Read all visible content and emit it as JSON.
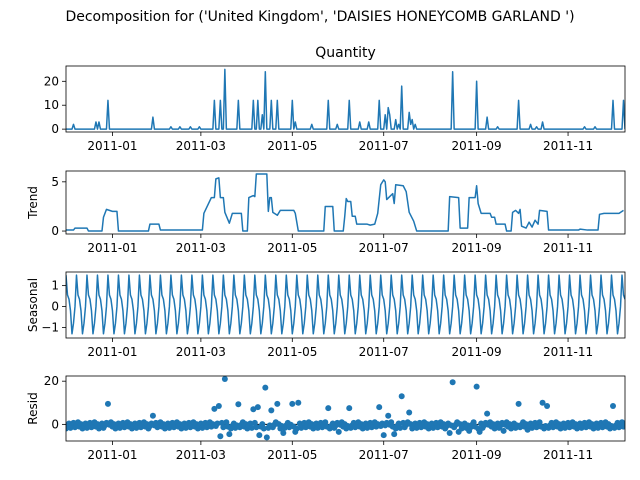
{
  "figure": {
    "suptitle": "Decomposition for ('United Kingdom', 'DAISIES  HONEYCOMB GARLAND ')"
  },
  "x_axis": {
    "start": "2010-12-01",
    "end": "2011-12-09",
    "tick_labels": [
      "2011-01",
      "2011-03",
      "2011-05",
      "2011-07",
      "2011-09",
      "2011-11"
    ],
    "tick_dates": [
      "2011-01-01",
      "2011-03-01",
      "2011-05-01",
      "2011-07-01",
      "2011-09-01",
      "2011-11-01"
    ]
  },
  "chart_data": [
    {
      "type": "line",
      "title": "Quantity",
      "ylabel": "",
      "ylim": [
        -1.2,
        26.4
      ],
      "yticks": [
        0,
        10,
        20
      ],
      "ytick_labels": [
        "0",
        "10",
        "20"
      ],
      "color": "#1f77b4",
      "note_values": "daily values with spikes",
      "points": [
        [
          "2010-12-01",
          0
        ],
        [
          "2010-12-05",
          0
        ],
        [
          "2010-12-06",
          2
        ],
        [
          "2010-12-07",
          0
        ],
        [
          "2010-12-20",
          0
        ],
        [
          "2010-12-21",
          3
        ],
        [
          "2010-12-22",
          0
        ],
        [
          "2010-12-23",
          3
        ],
        [
          "2010-12-24",
          0
        ],
        [
          "2010-12-28",
          0
        ],
        [
          "2010-12-29",
          12
        ],
        [
          "2010-12-30",
          0
        ],
        [
          "2011-01-27",
          0
        ],
        [
          "2011-01-28",
          5
        ],
        [
          "2011-01-29",
          0
        ],
        [
          "2011-02-08",
          0
        ],
        [
          "2011-02-09",
          1
        ],
        [
          "2011-02-10",
          0
        ],
        [
          "2011-02-14",
          0
        ],
        [
          "2011-02-15",
          1
        ],
        [
          "2011-02-16",
          0
        ],
        [
          "2011-02-21",
          0
        ],
        [
          "2011-02-22",
          1
        ],
        [
          "2011-02-23",
          0
        ],
        [
          "2011-02-27",
          0
        ],
        [
          "2011-02-28",
          1
        ],
        [
          "2011-03-01",
          0
        ],
        [
          "2011-03-09",
          0
        ],
        [
          "2011-03-10",
          12
        ],
        [
          "2011-03-11",
          0
        ],
        [
          "2011-03-13",
          0
        ],
        [
          "2011-03-14",
          12
        ],
        [
          "2011-03-15",
          0
        ],
        [
          "2011-03-16",
          0
        ],
        [
          "2011-03-17",
          25
        ],
        [
          "2011-03-18",
          0
        ],
        [
          "2011-03-25",
          0
        ],
        [
          "2011-03-26",
          12
        ],
        [
          "2011-03-27",
          0
        ],
        [
          "2011-04-04",
          0
        ],
        [
          "2011-04-05",
          12
        ],
        [
          "2011-04-06",
          0
        ],
        [
          "2011-04-07",
          0
        ],
        [
          "2011-04-08",
          12
        ],
        [
          "2011-04-09",
          0
        ],
        [
          "2011-04-10",
          0
        ],
        [
          "2011-04-11",
          6
        ],
        [
          "2011-04-12",
          0
        ],
        [
          "2011-04-13",
          24
        ],
        [
          "2011-04-14",
          0
        ],
        [
          "2011-04-16",
          0
        ],
        [
          "2011-04-17",
          12
        ],
        [
          "2011-04-18",
          0
        ],
        [
          "2011-04-20",
          0
        ],
        [
          "2011-04-21",
          12
        ],
        [
          "2011-04-22",
          0
        ],
        [
          "2011-04-30",
          0
        ],
        [
          "2011-05-01",
          12
        ],
        [
          "2011-05-02",
          0
        ],
        [
          "2011-05-03",
          3
        ],
        [
          "2011-05-04",
          0
        ],
        [
          "2011-05-13",
          0
        ],
        [
          "2011-05-14",
          2
        ],
        [
          "2011-05-15",
          0
        ],
        [
          "2011-05-24",
          0
        ],
        [
          "2011-05-25",
          12
        ],
        [
          "2011-05-26",
          0
        ],
        [
          "2011-05-30",
          0
        ],
        [
          "2011-05-31",
          2
        ],
        [
          "2011-06-01",
          0
        ],
        [
          "2011-06-07",
          0
        ],
        [
          "2011-06-08",
          12
        ],
        [
          "2011-06-09",
          0
        ],
        [
          "2011-06-14",
          0
        ],
        [
          "2011-06-15",
          3
        ],
        [
          "2011-06-16",
          0
        ],
        [
          "2011-06-20",
          0
        ],
        [
          "2011-06-21",
          3
        ],
        [
          "2011-06-22",
          0
        ],
        [
          "2011-06-27",
          0
        ],
        [
          "2011-06-28",
          12
        ],
        [
          "2011-06-29",
          0
        ],
        [
          "2011-07-01",
          0
        ],
        [
          "2011-07-02",
          6
        ],
        [
          "2011-07-03",
          0
        ],
        [
          "2011-07-04",
          9
        ],
        [
          "2011-07-05",
          6
        ],
        [
          "2011-07-06",
          0
        ],
        [
          "2011-07-08",
          0
        ],
        [
          "2011-07-09",
          4
        ],
        [
          "2011-07-10",
          0
        ],
        [
          "2011-07-11",
          2
        ],
        [
          "2011-07-12",
          0
        ],
        [
          "2011-07-13",
          18
        ],
        [
          "2011-07-14",
          0
        ],
        [
          "2011-07-17",
          0
        ],
        [
          "2011-07-18",
          7
        ],
        [
          "2011-07-19",
          2
        ],
        [
          "2011-07-20",
          4
        ],
        [
          "2011-07-21",
          0
        ],
        [
          "2011-07-22",
          2
        ],
        [
          "2011-07-23",
          0
        ],
        [
          "2011-08-15",
          0
        ],
        [
          "2011-08-16",
          24
        ],
        [
          "2011-08-17",
          0
        ],
        [
          "2011-08-31",
          0
        ],
        [
          "2011-09-01",
          20
        ],
        [
          "2011-09-02",
          0
        ],
        [
          "2011-09-07",
          0
        ],
        [
          "2011-09-08",
          5
        ],
        [
          "2011-09-09",
          0
        ],
        [
          "2011-09-14",
          0
        ],
        [
          "2011-09-15",
          1
        ],
        [
          "2011-09-16",
          0
        ],
        [
          "2011-09-28",
          0
        ],
        [
          "2011-09-29",
          12
        ],
        [
          "2011-09-30",
          0
        ],
        [
          "2011-10-06",
          0
        ],
        [
          "2011-10-07",
          2
        ],
        [
          "2011-10-08",
          0
        ],
        [
          "2011-10-10",
          0
        ],
        [
          "2011-10-11",
          1
        ],
        [
          "2011-10-12",
          0
        ],
        [
          "2011-10-14",
          0
        ],
        [
          "2011-10-15",
          3
        ],
        [
          "2011-10-16",
          0
        ],
        [
          "2011-11-11",
          0
        ],
        [
          "2011-11-12",
          1
        ],
        [
          "2011-11-13",
          0
        ],
        [
          "2011-11-18",
          0
        ],
        [
          "2011-11-19",
          1
        ],
        [
          "2011-11-20",
          0
        ],
        [
          "2011-11-30",
          0
        ],
        [
          "2011-12-01",
          12
        ],
        [
          "2011-12-02",
          0
        ],
        [
          "2011-12-07",
          0
        ],
        [
          "2011-12-08",
          12
        ],
        [
          "2011-12-09",
          0
        ]
      ]
    },
    {
      "type": "line",
      "title": "",
      "ylabel": "Trend",
      "ylim": [
        -0.3,
        6.1
      ],
      "yticks": [
        0,
        5
      ],
      "ytick_labels": [
        "0",
        "5"
      ],
      "color": "#1f77b4",
      "points": [
        [
          "2010-12-01",
          0.1
        ],
        [
          "2010-12-06",
          0.1
        ],
        [
          "2010-12-07",
          0.3
        ],
        [
          "2010-12-15",
          0.3
        ],
        [
          "2010-12-16",
          0.0
        ],
        [
          "2010-12-25",
          0.0
        ],
        [
          "2010-12-26",
          1.4
        ],
        [
          "2010-12-28",
          2.2
        ],
        [
          "2011-01-01",
          2.0
        ],
        [
          "2011-01-04",
          2.0
        ],
        [
          "2011-01-05",
          0.0
        ],
        [
          "2011-01-25",
          0.0
        ],
        [
          "2011-01-26",
          0.7
        ],
        [
          "2011-02-01",
          0.7
        ],
        [
          "2011-02-02",
          0.1
        ],
        [
          "2011-03-02",
          0.1
        ],
        [
          "2011-03-03",
          1.8
        ],
        [
          "2011-03-08",
          3.4
        ],
        [
          "2011-03-10",
          3.4
        ],
        [
          "2011-03-11",
          5.3
        ],
        [
          "2011-03-13",
          5.4
        ],
        [
          "2011-03-14",
          3.4
        ],
        [
          "2011-03-16",
          3.4
        ],
        [
          "2011-03-17",
          1.9
        ],
        [
          "2011-03-20",
          0.8
        ],
        [
          "2011-03-22",
          1.8
        ],
        [
          "2011-03-28",
          1.8
        ],
        [
          "2011-03-29",
          0.0
        ],
        [
          "2011-04-01",
          0.0
        ],
        [
          "2011-04-02",
          3.4
        ],
        [
          "2011-04-05",
          3.6
        ],
        [
          "2011-04-06",
          3.5
        ],
        [
          "2011-04-07",
          5.8
        ],
        [
          "2011-04-14",
          5.8
        ],
        [
          "2011-04-15",
          2.0
        ],
        [
          "2011-04-16",
          3.4
        ],
        [
          "2011-04-17",
          3.4
        ],
        [
          "2011-04-18",
          1.9
        ],
        [
          "2011-04-20",
          1.7
        ],
        [
          "2011-04-21",
          1.6
        ],
        [
          "2011-04-23",
          2.1
        ],
        [
          "2011-05-02",
          2.1
        ],
        [
          "2011-05-03",
          1.8
        ],
        [
          "2011-05-05",
          0.0
        ],
        [
          "2011-05-22",
          0.0
        ],
        [
          "2011-05-23",
          2.5
        ],
        [
          "2011-05-28",
          2.5
        ],
        [
          "2011-05-29",
          0.0
        ],
        [
          "2011-06-04",
          0.0
        ],
        [
          "2011-06-05",
          1.5
        ],
        [
          "2011-06-06",
          3.3
        ],
        [
          "2011-06-07",
          3.0
        ],
        [
          "2011-06-09",
          3.0
        ],
        [
          "2011-06-10",
          1.5
        ],
        [
          "2011-06-12",
          1.5
        ],
        [
          "2011-06-13",
          0.7
        ],
        [
          "2011-06-20",
          0.7
        ],
        [
          "2011-06-22",
          0.6
        ],
        [
          "2011-06-25",
          0.7
        ],
        [
          "2011-06-27",
          1.8
        ],
        [
          "2011-06-29",
          4.7
        ],
        [
          "2011-07-01",
          5.2
        ],
        [
          "2011-07-02",
          5.0
        ],
        [
          "2011-07-03",
          3.2
        ],
        [
          "2011-07-05",
          3.5
        ],
        [
          "2011-07-07",
          3.8
        ],
        [
          "2011-07-08",
          2.8
        ],
        [
          "2011-07-09",
          4.7
        ],
        [
          "2011-07-14",
          4.6
        ],
        [
          "2011-07-16",
          4.0
        ],
        [
          "2011-07-18",
          1.9
        ],
        [
          "2011-07-21",
          1.0
        ],
        [
          "2011-07-23",
          0.0
        ],
        [
          "2011-08-13",
          0.0
        ],
        [
          "2011-08-14",
          3.5
        ],
        [
          "2011-08-20",
          3.4
        ],
        [
          "2011-08-21",
          0.3
        ],
        [
          "2011-08-26",
          0.3
        ],
        [
          "2011-08-27",
          3.4
        ],
        [
          "2011-08-31",
          3.4
        ],
        [
          "2011-09-01",
          4.6
        ],
        [
          "2011-09-02",
          2.8
        ],
        [
          "2011-09-04",
          1.8
        ],
        [
          "2011-09-06",
          1.8
        ],
        [
          "2011-09-10",
          1.8
        ],
        [
          "2011-09-11",
          1.4
        ],
        [
          "2011-09-13",
          1.4
        ],
        [
          "2011-09-14",
          0.7
        ],
        [
          "2011-09-20",
          0.7
        ],
        [
          "2011-09-21",
          0.0
        ],
        [
          "2011-09-24",
          0.0
        ],
        [
          "2011-09-25",
          1.9
        ],
        [
          "2011-09-27",
          2.1
        ],
        [
          "2011-09-29",
          1.8
        ],
        [
          "2011-09-30",
          2.2
        ],
        [
          "2011-10-01",
          0.5
        ],
        [
          "2011-10-04",
          0.3
        ],
        [
          "2011-10-06",
          0.9
        ],
        [
          "2011-10-08",
          0.4
        ],
        [
          "2011-10-10",
          1.1
        ],
        [
          "2011-10-12",
          0.7
        ],
        [
          "2011-10-13",
          2.1
        ],
        [
          "2011-10-18",
          2.0
        ],
        [
          "2011-10-19",
          0.1
        ],
        [
          "2011-11-08",
          0.1
        ],
        [
          "2011-11-09",
          0.2
        ],
        [
          "2011-11-14",
          0.1
        ],
        [
          "2011-11-20",
          0.1
        ],
        [
          "2011-11-21",
          0.1
        ],
        [
          "2011-11-22",
          1.7
        ],
        [
          "2011-11-25",
          1.8
        ],
        [
          "2011-12-05",
          1.8
        ],
        [
          "2011-12-08",
          2.1
        ]
      ]
    },
    {
      "type": "line",
      "title": "",
      "ylabel": "Seasonal",
      "ylim": [
        -1.5,
        1.65
      ],
      "yticks": [
        -1,
        0,
        1
      ],
      "ytick_labels": [
        "−1",
        "0",
        "1"
      ],
      "color": "#1f77b4",
      "period_days": 7,
      "weekly_pattern": [
        1.5,
        0.55,
        0.35,
        -0.2,
        -1.3,
        -0.8,
        0.0
      ]
    },
    {
      "type": "scatter",
      "title": "",
      "ylabel": "Resid",
      "ylim": [
        -7.7,
        22.4
      ],
      "yticks": [
        0,
        20
      ],
      "ytick_labels": [
        "0",
        "20"
      ],
      "color": "#1f77b4",
      "marker_size": 6,
      "baseline": 0,
      "outliers": [
        [
          "2010-12-29",
          9.5
        ],
        [
          "2011-01-28",
          4
        ],
        [
          "2011-03-10",
          7.2
        ],
        [
          "2011-03-13",
          8.5
        ],
        [
          "2011-03-17",
          21
        ],
        [
          "2011-03-26",
          9.3
        ],
        [
          "2011-04-05",
          7
        ],
        [
          "2011-04-08",
          8
        ],
        [
          "2011-04-13",
          17
        ],
        [
          "2011-04-17",
          6.5
        ],
        [
          "2011-04-21",
          9.5
        ],
        [
          "2011-05-01",
          9.5
        ],
        [
          "2011-05-05",
          10
        ],
        [
          "2011-05-25",
          7.5
        ],
        [
          "2011-06-08",
          7.5
        ],
        [
          "2011-06-28",
          8
        ],
        [
          "2011-07-04",
          4
        ],
        [
          "2011-07-13",
          13
        ],
        [
          "2011-07-18",
          5.5
        ],
        [
          "2011-08-16",
          19.5
        ],
        [
          "2011-09-01",
          17.5
        ],
        [
          "2011-09-08",
          5
        ],
        [
          "2011-09-29",
          9.5
        ],
        [
          "2011-10-15",
          10
        ],
        [
          "2011-10-18",
          8.5
        ],
        [
          "2011-12-01",
          8.5
        ]
      ],
      "dips": [
        [
          "2011-03-14",
          -5.5
        ],
        [
          "2011-03-20",
          -4.5
        ],
        [
          "2011-04-09",
          -5
        ],
        [
          "2011-04-14",
          -6
        ],
        [
          "2011-04-25",
          -4
        ],
        [
          "2011-05-03",
          -3.5
        ],
        [
          "2011-06-01",
          -3.5
        ],
        [
          "2011-07-01",
          -5
        ],
        [
          "2011-07-08",
          -4.5
        ],
        [
          "2011-08-14",
          -4
        ],
        [
          "2011-08-20",
          -3.5
        ],
        [
          "2011-08-27",
          -3
        ],
        [
          "2011-09-03",
          -3.5
        ],
        [
          "2011-09-19",
          -3
        ],
        [
          "2011-10-05",
          -2.5
        ]
      ]
    }
  ]
}
